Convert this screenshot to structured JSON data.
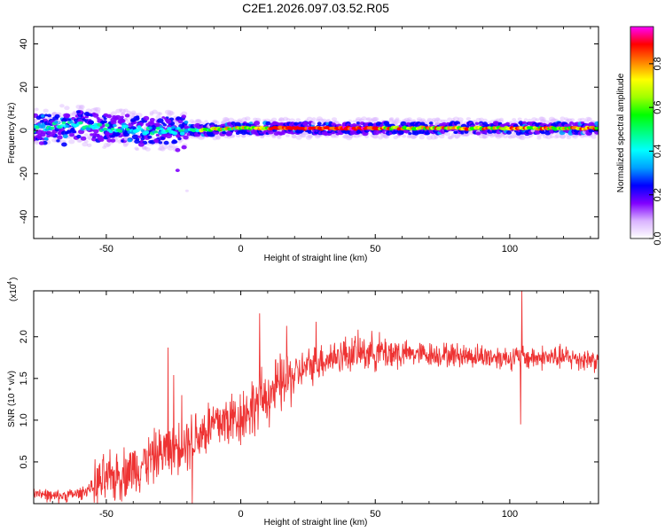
{
  "title": "C2E1.2026.097.03.52.R05",
  "chart_data": [
    {
      "type": "heatmap",
      "xlabel": "Height of straight line (km)",
      "ylabel": "Frequency (Hz)",
      "xlim": [
        -77,
        133
      ],
      "ylim": [
        -50,
        48
      ],
      "xticks": [
        -50,
        0,
        50,
        100
      ],
      "xtick_labels": [
        "-50",
        "0",
        "50",
        "100"
      ],
      "yticks": [
        -40,
        -20,
        0,
        20,
        40
      ],
      "ytick_labels": [
        "-40",
        "-20",
        "0",
        "20",
        "40"
      ],
      "colorbar": {
        "label": "Normalized spectral amplitude",
        "range": [
          0,
          0.97
        ],
        "ticks": [
          0.0,
          0.2,
          0.4,
          0.6,
          0.8
        ],
        "tick_labels": [
          "0.0",
          "0.2",
          "0.4",
          "0.6",
          "0.8"
        ],
        "colors": [
          "#ffffff",
          "#d9b3ff",
          "#8000ff",
          "#0000ff",
          "#00a0ff",
          "#00ffff",
          "#00ff80",
          "#00ff00",
          "#a0ff00",
          "#ffff00",
          "#ff8000",
          "#ff0000",
          "#ff00ff"
        ]
      },
      "ridge_center_hz": [
        {
          "x": -77,
          "y": 1
        },
        {
          "x": -65,
          "y": 3
        },
        {
          "x": -50,
          "y": 1
        },
        {
          "x": -35,
          "y": 0
        },
        {
          "x": -20,
          "y": 0
        },
        {
          "x": 0,
          "y": 1
        },
        {
          "x": 50,
          "y": 1
        },
        {
          "x": 100,
          "y": 1
        },
        {
          "x": 133,
          "y": 1
        }
      ]
    },
    {
      "type": "line",
      "xlabel": "Height of straight line (km)",
      "ylabel": "SNR (10 * v/v)",
      "scale_label": "(x10",
      "scale_exponent": "4",
      "scale_suffix": ")",
      "xlim": [
        -77,
        133
      ],
      "ylim": [
        0,
        2.55
      ],
      "xticks": [
        -50,
        0,
        50,
        100
      ],
      "xtick_labels": [
        "-50",
        "0",
        "50",
        "100"
      ],
      "yticks": [
        0.5,
        1.0,
        1.5,
        2.0
      ],
      "ytick_labels": [
        "0.5",
        "1.0",
        "1.5",
        "2.0"
      ],
      "series": [
        {
          "name": "SNR",
          "color": "#ee3333",
          "trend": [
            {
              "x": -77,
              "y": 0.15
            },
            {
              "x": -70,
              "y": 0.08
            },
            {
              "x": -60,
              "y": 0.12
            },
            {
              "x": -50,
              "y": 0.28
            },
            {
              "x": -40,
              "y": 0.42
            },
            {
              "x": -30,
              "y": 0.6
            },
            {
              "x": -20,
              "y": 0.75
            },
            {
              "x": -10,
              "y": 0.95
            },
            {
              "x": 0,
              "y": 1.05
            },
            {
              "x": 10,
              "y": 1.3
            },
            {
              "x": 20,
              "y": 1.55
            },
            {
              "x": 30,
              "y": 1.72
            },
            {
              "x": 40,
              "y": 1.8
            },
            {
              "x": 50,
              "y": 1.82
            },
            {
              "x": 60,
              "y": 1.8
            },
            {
              "x": 80,
              "y": 1.78
            },
            {
              "x": 100,
              "y": 1.75
            },
            {
              "x": 120,
              "y": 1.75
            },
            {
              "x": 133,
              "y": 1.72
            }
          ],
          "spikes": [
            {
              "x": -27,
              "y": 1.87
            },
            {
              "x": -25,
              "y": 1.54
            },
            {
              "x": -22,
              "y": 1.3
            },
            {
              "x": 7,
              "y": 2.28
            },
            {
              "x": 17,
              "y": 2.13
            },
            {
              "x": 28,
              "y": 2.18
            },
            {
              "x": 104.5,
              "y": 2.55
            },
            {
              "x": 104,
              "y": 0.95
            },
            {
              "x": -18,
              "y": 0.0
            }
          ]
        }
      ]
    }
  ]
}
